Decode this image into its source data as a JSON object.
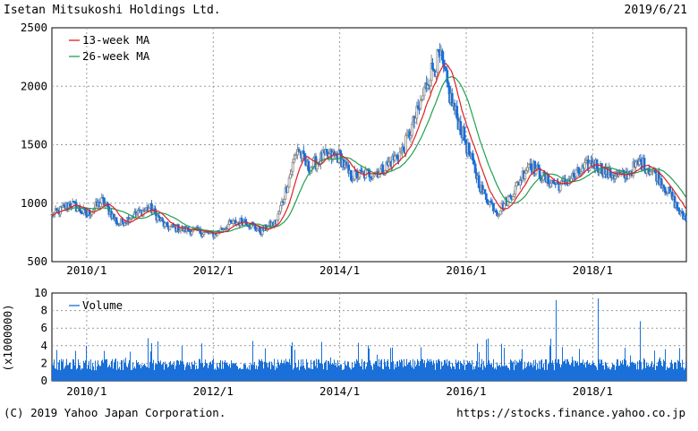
{
  "header": {
    "company": "Isetan Mitsukoshi Holdings Ltd.",
    "date": "2019/6/21"
  },
  "footer": {
    "copyright": "(C) 2019 Yahoo Japan Corporation.",
    "url": "https://stocks.finance.yahoo.co.jp"
  },
  "colors": {
    "up": "#888888",
    "down": "#1a6fd8",
    "ma13": "#e02020",
    "ma26": "#20a050",
    "volume": "#1a6fd8",
    "grid": "#999999"
  },
  "chart_data": [
    {
      "type": "candlestick",
      "ylim": [
        500,
        2500
      ],
      "yticks": [
        500,
        1000,
        1500,
        2000,
        2500
      ],
      "xticks": [
        "2010/1",
        "2012/1",
        "2014/1",
        "2016/1",
        "2018/1"
      ],
      "grid": true,
      "legend": "top-left",
      "series": [
        {
          "name": "13-week MA"
        },
        {
          "name": "26-week MA"
        }
      ],
      "anchors": [
        [
          "2009/6",
          880
        ],
        [
          "2009/10",
          1000
        ],
        [
          "2010/1",
          900
        ],
        [
          "2010/4",
          1020
        ],
        [
          "2010/7",
          820
        ],
        [
          "2010/10",
          900
        ],
        [
          "2011/1",
          960
        ],
        [
          "2011/4",
          800
        ],
        [
          "2011/7",
          780
        ],
        [
          "2011/10",
          760
        ],
        [
          "2012/1",
          730
        ],
        [
          "2012/4",
          820
        ],
        [
          "2012/7",
          850
        ],
        [
          "2012/10",
          760
        ],
        [
          "2013/1",
          840
        ],
        [
          "2013/3",
          1150
        ],
        [
          "2013/5",
          1470
        ],
        [
          "2013/7",
          1300
        ],
        [
          "2013/10",
          1400
        ],
        [
          "2014/1",
          1400
        ],
        [
          "2014/3",
          1230
        ],
        [
          "2014/6",
          1250
        ],
        [
          "2014/9",
          1280
        ],
        [
          "2015/1",
          1450
        ],
        [
          "2015/4",
          1800
        ],
        [
          "2015/6",
          2100
        ],
        [
          "2015/8",
          2250
        ],
        [
          "2015/10",
          1900
        ],
        [
          "2016/1",
          1500
        ],
        [
          "2016/4",
          1100
        ],
        [
          "2016/7",
          920
        ],
        [
          "2016/10",
          1100
        ],
        [
          "2017/1",
          1350
        ],
        [
          "2017/4",
          1200
        ],
        [
          "2017/7",
          1150
        ],
        [
          "2017/10",
          1250
        ],
        [
          "2018/1",
          1350
        ],
        [
          "2018/4",
          1250
        ],
        [
          "2018/7",
          1230
        ],
        [
          "2018/10",
          1350
        ],
        [
          "2019/1",
          1250
        ],
        [
          "2019/4",
          1050
        ],
        [
          "2019/6",
          880
        ]
      ]
    },
    {
      "type": "bar",
      "ylim": [
        0,
        10
      ],
      "yticks": [
        0,
        2,
        4,
        6,
        8,
        10
      ],
      "ylabel": "(x1000000)",
      "xticks": [
        "2010/1",
        "2012/1",
        "2014/1",
        "2016/1",
        "2018/1"
      ],
      "series": [
        {
          "name": "Volume"
        }
      ],
      "spikes": [
        [
          "2017/6",
          9.2
        ],
        [
          "2018/2",
          9.4
        ],
        [
          "2018/10",
          6.8
        ]
      ]
    }
  ]
}
